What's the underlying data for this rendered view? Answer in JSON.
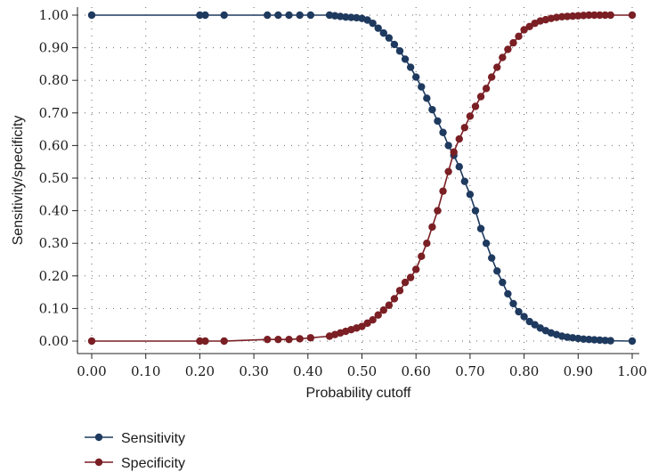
{
  "chart_data": {
    "type": "line",
    "xlabel": "Probability cutoff",
    "ylabel": "Sensitivity/specificity",
    "xlim": [
      0,
      1
    ],
    "ylim": [
      0,
      1
    ],
    "xticks": [
      "0.00",
      "0.10",
      "0.20",
      "0.30",
      "0.40",
      "0.50",
      "0.60",
      "0.70",
      "0.80",
      "0.90",
      "1.00"
    ],
    "yticks": [
      "0.00",
      "0.10",
      "0.20",
      "0.30",
      "0.40",
      "0.50",
      "0.60",
      "0.70",
      "0.80",
      "0.90",
      "1.00"
    ],
    "grid": true,
    "legend_position": "bottom-left",
    "series": [
      {
        "name": "Sensitivity",
        "color": "#1f3a5f",
        "x": [
          0.0,
          0.2,
          0.21,
          0.245,
          0.325,
          0.345,
          0.365,
          0.385,
          0.405,
          0.44,
          0.45,
          0.46,
          0.47,
          0.48,
          0.49,
          0.5,
          0.51,
          0.52,
          0.53,
          0.54,
          0.55,
          0.56,
          0.57,
          0.58,
          0.59,
          0.6,
          0.61,
          0.62,
          0.63,
          0.64,
          0.65,
          0.66,
          0.67,
          0.68,
          0.69,
          0.7,
          0.71,
          0.72,
          0.73,
          0.74,
          0.75,
          0.76,
          0.77,
          0.78,
          0.79,
          0.8,
          0.81,
          0.82,
          0.83,
          0.84,
          0.85,
          0.86,
          0.87,
          0.88,
          0.89,
          0.9,
          0.91,
          0.92,
          0.93,
          0.94,
          0.95,
          0.96,
          1.0
        ],
        "y": [
          1.0,
          1.0,
          1.0,
          1.0,
          1.0,
          1.0,
          1.0,
          1.0,
          1.0,
          1.0,
          0.998,
          0.996,
          0.994,
          0.993,
          0.992,
          0.99,
          0.985,
          0.975,
          0.96,
          0.945,
          0.93,
          0.91,
          0.89,
          0.865,
          0.84,
          0.81,
          0.78,
          0.745,
          0.71,
          0.675,
          0.64,
          0.6,
          0.57,
          0.535,
          0.49,
          0.45,
          0.4,
          0.345,
          0.3,
          0.255,
          0.215,
          0.18,
          0.145,
          0.115,
          0.09,
          0.075,
          0.06,
          0.05,
          0.04,
          0.032,
          0.025,
          0.02,
          0.015,
          0.012,
          0.01,
          0.008,
          0.006,
          0.005,
          0.004,
          0.003,
          0.002,
          0.001,
          0.0
        ]
      },
      {
        "name": "Specificity",
        "color": "#7a1f24",
        "x": [
          0.0,
          0.2,
          0.21,
          0.245,
          0.325,
          0.345,
          0.365,
          0.385,
          0.405,
          0.44,
          0.45,
          0.46,
          0.47,
          0.48,
          0.49,
          0.5,
          0.51,
          0.52,
          0.53,
          0.54,
          0.55,
          0.56,
          0.57,
          0.58,
          0.59,
          0.6,
          0.61,
          0.62,
          0.63,
          0.64,
          0.65,
          0.66,
          0.67,
          0.68,
          0.69,
          0.7,
          0.71,
          0.72,
          0.73,
          0.74,
          0.75,
          0.76,
          0.77,
          0.78,
          0.79,
          0.8,
          0.81,
          0.82,
          0.83,
          0.84,
          0.85,
          0.86,
          0.87,
          0.88,
          0.89,
          0.9,
          0.91,
          0.92,
          0.93,
          0.94,
          0.95,
          0.96,
          1.0
        ],
        "y": [
          0.0,
          0.0,
          0.0,
          0.0,
          0.005,
          0.005,
          0.005,
          0.007,
          0.01,
          0.015,
          0.02,
          0.025,
          0.03,
          0.035,
          0.04,
          0.045,
          0.055,
          0.065,
          0.08,
          0.095,
          0.11,
          0.13,
          0.155,
          0.18,
          0.195,
          0.22,
          0.26,
          0.3,
          0.35,
          0.4,
          0.46,
          0.52,
          0.58,
          0.62,
          0.655,
          0.69,
          0.72,
          0.75,
          0.775,
          0.81,
          0.84,
          0.87,
          0.895,
          0.915,
          0.935,
          0.955,
          0.965,
          0.975,
          0.982,
          0.986,
          0.99,
          0.993,
          0.995,
          0.996,
          0.997,
          0.998,
          0.999,
          1.0,
          1.0,
          1.0,
          1.0,
          1.0,
          1.0
        ]
      }
    ]
  }
}
